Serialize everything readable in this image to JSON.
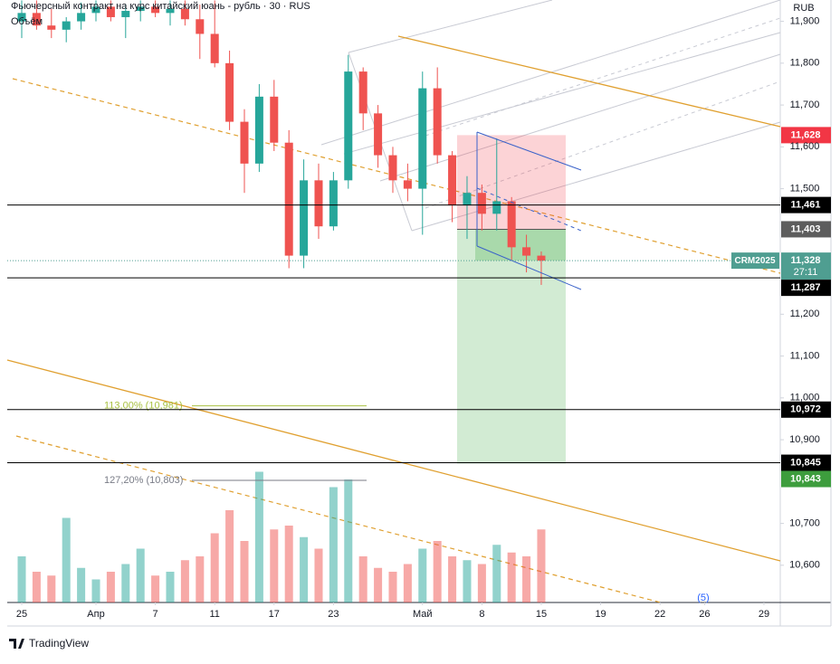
{
  "chart_data": {
    "type": "candlestick",
    "title": "Фьючерсный контракт на курс китайский юань - рубль · 30 · RUS",
    "volume_label": "Объём",
    "currency": "RUB",
    "wave_label": "(5)",
    "brand": "TradingView",
    "up_color": "#26a69a",
    "down_color": "#ef5350",
    "x": [
      0,
      1,
      2,
      3,
      4,
      5,
      6,
      7,
      8,
      9,
      10,
      11,
      12,
      13,
      14,
      15,
      16,
      17,
      18,
      19,
      20,
      21,
      22,
      23,
      24,
      25,
      26,
      27,
      28,
      29,
      30,
      31,
      32,
      33,
      34,
      35
    ],
    "open": [
      11900,
      11920,
      11890,
      11880,
      11900,
      11920,
      11935,
      11910,
      11925,
      11935,
      11920,
      11930,
      11905,
      11870,
      11800,
      11660,
      11560,
      11720,
      11610,
      11340,
      11520,
      11410,
      11520,
      11780,
      11680,
      11580,
      11520,
      11500,
      11740,
      11580,
      11460,
      11490,
      11440,
      11470,
      11360,
      11340
    ],
    "high": [
      11950,
      11950,
      11930,
      11910,
      11945,
      11950,
      11950,
      11940,
      11950,
      11950,
      11950,
      11950,
      11940,
      11950,
      11830,
      11690,
      11750,
      11760,
      11640,
      11570,
      11560,
      11540,
      11820,
      11790,
      11700,
      11600,
      11560,
      11780,
      11790,
      11590,
      11530,
      11510,
      11620,
      11480,
      11390,
      11350
    ],
    "low": [
      11860,
      11880,
      11860,
      11850,
      11880,
      11900,
      11900,
      11860,
      11900,
      11910,
      11890,
      11890,
      11810,
      11790,
      11640,
      11490,
      11540,
      11590,
      11310,
      11310,
      11380,
      11400,
      11500,
      11640,
      11550,
      11490,
      11470,
      11390,
      11560,
      11420,
      11380,
      11400,
      11400,
      11330,
      11300,
      11270
    ],
    "close": [
      11920,
      11890,
      11880,
      11900,
      11920,
      11935,
      11910,
      11925,
      11935,
      11920,
      11930,
      11905,
      11870,
      11800,
      11660,
      11560,
      11720,
      11610,
      11340,
      11520,
      11410,
      11520,
      11780,
      11680,
      11580,
      11520,
      11500,
      11740,
      11580,
      11460,
      11490,
      11440,
      11470,
      11360,
      11340,
      11328
    ],
    "volume": [
      60,
      40,
      35,
      110,
      45,
      30,
      40,
      50,
      70,
      35,
      40,
      55,
      60,
      90,
      120,
      80,
      170,
      95,
      100,
      85,
      70,
      150,
      160,
      60,
      45,
      40,
      50,
      70,
      80,
      60,
      55,
      50,
      75,
      65,
      60,
      95
    ],
    "vlim": [
      0,
      200
    ],
    "xlim": [
      -0.976,
      51.1
    ],
    "xticks": [
      {
        "value": 0,
        "label": "25"
      },
      {
        "value": 5,
        "label": "Апр"
      },
      {
        "value": 9,
        "label": "7"
      },
      {
        "value": 13,
        "label": "11"
      },
      {
        "value": 17,
        "label": "17"
      },
      {
        "value": 21,
        "label": "23"
      },
      {
        "value": 27,
        "label": "Май"
      },
      {
        "value": 31,
        "label": "8"
      },
      {
        "value": 35,
        "label": "15"
      },
      {
        "value": 39,
        "label": "19"
      },
      {
        "value": 43,
        "label": "22"
      },
      {
        "value": 46,
        "label": "26"
      },
      {
        "value": 50,
        "label": "29"
      }
    ],
    "ylim": [
      10511,
      11951
    ],
    "yticks": [
      {
        "value": 10600,
        "label": "10,600"
      },
      {
        "value": 10700,
        "label": "10,700"
      },
      {
        "value": 10900,
        "label": "10,900"
      },
      {
        "value": 11000,
        "label": "11,000"
      },
      {
        "value": 11100,
        "label": "11,100"
      },
      {
        "value": 11200,
        "label": "11,200"
      },
      {
        "value": 11500,
        "label": "11,500"
      },
      {
        "value": 11600,
        "label": "11,600"
      },
      {
        "value": 11700,
        "label": "11,700"
      },
      {
        "value": 11800,
        "label": "11,800"
      },
      {
        "value": 11900,
        "label": "11,900"
      }
    ],
    "price_labels": [
      {
        "value": 11628,
        "label": "11,628",
        "color": "#f23645",
        "hline": false
      },
      {
        "value": 11461,
        "label": "11,461",
        "color": "#000000",
        "hline": true
      },
      {
        "value": 11403,
        "label": "11,403",
        "color": "#5d5d5d",
        "hline": false
      },
      {
        "value": 11328,
        "label": "11,328",
        "color": "#4f9e91",
        "hline": false,
        "tag": "CRM2025",
        "countdown": "27:11"
      },
      {
        "value": 11287,
        "label": "11,287",
        "color": "#000000",
        "hline": true
      },
      {
        "value": 10972,
        "label": "10,972",
        "color": "#000000",
        "hline": true
      },
      {
        "value": 10845,
        "label": "10,845",
        "color": "#000000",
        "hline": true
      },
      {
        "value": 10843,
        "label": "10,843",
        "color": "#3d9d3d",
        "hline": false
      }
    ],
    "fib_levels": [
      {
        "value": 10981,
        "label": "113,00% (10,981)",
        "color": "#a8c040"
      },
      {
        "value": 10803,
        "label": "127,20% (10,803)",
        "color": "#787b86"
      }
    ]
  }
}
